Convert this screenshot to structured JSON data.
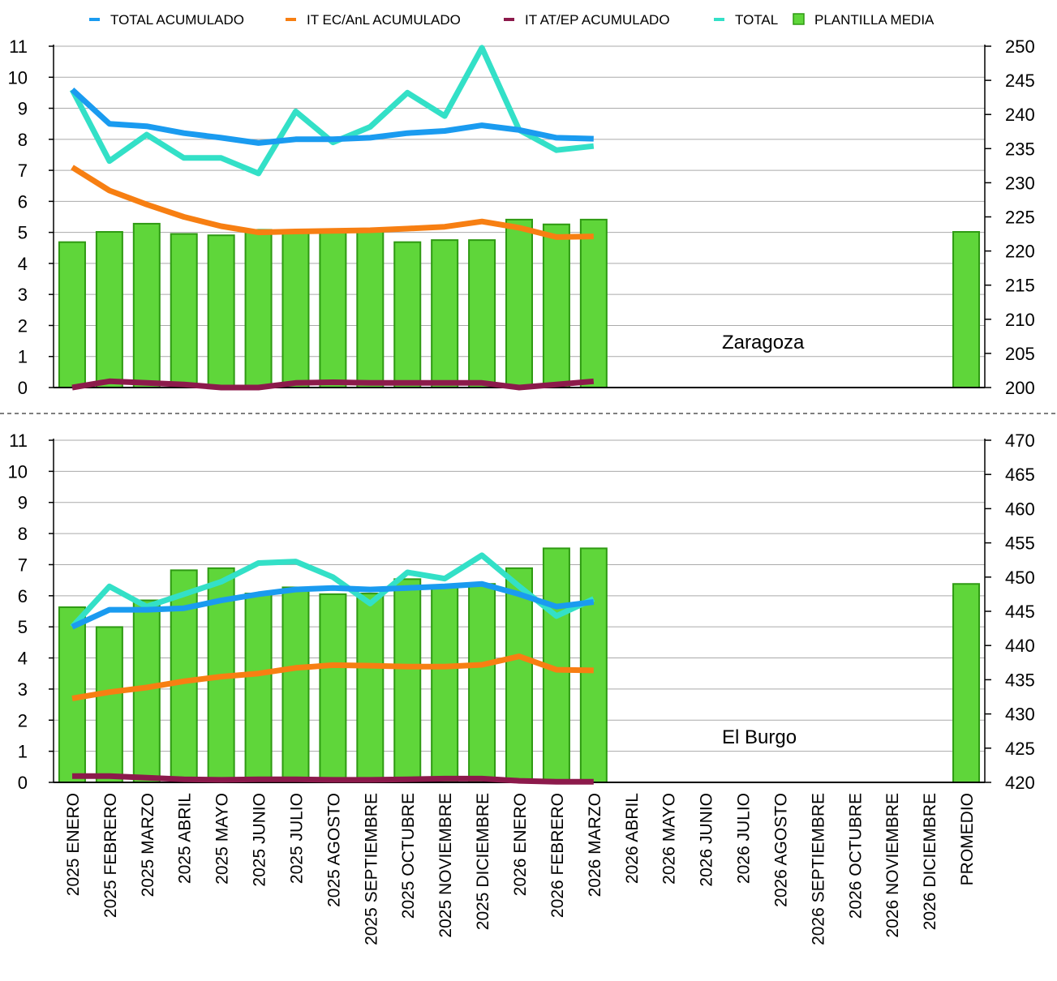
{
  "legend": [
    {
      "label": "TOTAL ACUMULADO",
      "color": "#1a9bf0",
      "kind": "line"
    },
    {
      "label": "IT EC/AnL ACUMULADO",
      "color": "#f77f12",
      "kind": "line"
    },
    {
      "label": "IT AT/EP ACUMULADO",
      "color": "#8c1a4b",
      "kind": "line"
    },
    {
      "label": "TOTAL",
      "color": "#33e0c7",
      "kind": "line"
    },
    {
      "label": "PLANTILLA MEDIA",
      "color": "#5fd63a",
      "kind": "bar"
    }
  ],
  "chart_data": [
    {
      "type": "bar+line",
      "panel_label": "Zaragoza",
      "categories": [
        "2025 ENERO",
        "2025 FEBRERO",
        "2025 MARZO",
        "2025 ABRIL",
        "2025 MAYO",
        "2025 JUNIO",
        "2025 JULIO",
        "2025 AGOSTO",
        "2025 SEPTIEMBRE",
        "2025 OCTUBRE",
        "2025 NOVIEMBRE",
        "2025 DICIEMBRE",
        "2026 ENERO",
        "2026 FEBRERO",
        "2026 MARZO",
        "2026 ABRIL",
        "2026 MAYO",
        "2026 JUNIO",
        "2026 JULIO",
        "2026 AGOSTO",
        "2026 SEPTIEMBRE",
        "2026 OCTUBRE",
        "2026 NOVIEMBRE",
        "2026 DICIEMBRE",
        "PROMEDIO"
      ],
      "y_left": {
        "min": 0,
        "max": 11,
        "ticks": [
          0,
          1,
          2,
          3,
          4,
          5,
          6,
          7,
          8,
          9,
          10,
          11
        ]
      },
      "y_right": {
        "min": 200,
        "max": 250,
        "ticks": [
          200,
          205,
          210,
          215,
          220,
          225,
          230,
          235,
          240,
          245,
          250
        ]
      },
      "grid": true,
      "bars": {
        "name": "PLANTILLA MEDIA",
        "axis": "right",
        "values": [
          221.3,
          222.8,
          224.0,
          222.5,
          222.3,
          223.1,
          222.9,
          223.0,
          223.1,
          221.3,
          221.6,
          221.6,
          224.6,
          223.9,
          224.6,
          null,
          null,
          null,
          null,
          null,
          null,
          null,
          null,
          null,
          222.8
        ]
      },
      "series": [
        {
          "name": "TOTAL ACUMULADO",
          "axis": "left",
          "color": "#1a9bf0",
          "values": [
            9.6,
            8.5,
            8.42,
            8.2,
            8.05,
            7.88,
            8.0,
            8.0,
            8.05,
            8.2,
            8.27,
            8.45,
            8.3,
            8.05,
            8.02,
            null,
            null,
            null,
            null,
            null,
            null,
            null,
            null,
            null,
            null
          ]
        },
        {
          "name": "IT EC/AnL ACUMULADO",
          "axis": "left",
          "color": "#f77f12",
          "values": [
            7.1,
            6.35,
            5.9,
            5.5,
            5.2,
            5.0,
            5.03,
            5.05,
            5.07,
            5.12,
            5.18,
            5.35,
            5.15,
            4.85,
            4.87,
            null,
            null,
            null,
            null,
            null,
            null,
            null,
            null,
            null,
            null
          ]
        },
        {
          "name": "IT AT/EP ACUMULADO",
          "axis": "left",
          "color": "#8c1a4b",
          "values": [
            0.0,
            0.2,
            0.15,
            0.1,
            0.0,
            0.0,
            0.15,
            0.17,
            0.15,
            0.15,
            0.15,
            0.15,
            0.0,
            0.1,
            0.2,
            null,
            null,
            null,
            null,
            null,
            null,
            null,
            null,
            null,
            null
          ]
        },
        {
          "name": "TOTAL",
          "axis": "left",
          "color": "#33e0c7",
          "values": [
            9.6,
            7.3,
            8.15,
            7.4,
            7.4,
            6.9,
            8.9,
            7.9,
            8.4,
            9.5,
            8.75,
            10.95,
            8.3,
            7.65,
            7.78,
            null,
            null,
            null,
            null,
            null,
            null,
            null,
            null,
            null,
            null
          ]
        }
      ]
    },
    {
      "type": "bar+line",
      "panel_label": "El Burgo",
      "categories": [
        "2025 ENERO",
        "2025 FEBRERO",
        "2025 MARZO",
        "2025 ABRIL",
        "2025 MAYO",
        "2025 JUNIO",
        "2025 JULIO",
        "2025 AGOSTO",
        "2025 SEPTIEMBRE",
        "2025 OCTUBRE",
        "2025 NOVIEMBRE",
        "2025 DICIEMBRE",
        "2026 ENERO",
        "2026 FEBRERO",
        "2026 MARZO",
        "2026 ABRIL",
        "2026 MAYO",
        "2026 JUNIO",
        "2026 JULIO",
        "2026 AGOSTO",
        "2026 SEPTIEMBRE",
        "2026 OCTUBRE",
        "2026 NOVIEMBRE",
        "2026 DICIEMBRE",
        "PROMEDIO"
      ],
      "y_left": {
        "min": 0,
        "max": 11,
        "ticks": [
          0,
          1,
          2,
          3,
          4,
          5,
          6,
          7,
          8,
          9,
          10,
          11
        ]
      },
      "y_right": {
        "min": 420,
        "max": 470,
        "ticks": [
          420,
          425,
          430,
          435,
          440,
          445,
          450,
          455,
          460,
          465,
          470
        ]
      },
      "grid": true,
      "bars": {
        "name": "PLANTILLA MEDIA",
        "axis": "right",
        "values": [
          445.6,
          442.7,
          446.6,
          451.0,
          451.3,
          447.6,
          448.5,
          447.5,
          447.6,
          449.7,
          448.8,
          449.0,
          451.3,
          454.2,
          454.2,
          null,
          null,
          null,
          null,
          null,
          null,
          null,
          null,
          null,
          449.0
        ]
      },
      "series": [
        {
          "name": "TOTAL ACUMULADO",
          "axis": "left",
          "color": "#1a9bf0",
          "values": [
            5.0,
            5.55,
            5.55,
            5.6,
            5.85,
            6.05,
            6.2,
            6.25,
            6.2,
            6.25,
            6.3,
            6.38,
            6.05,
            5.65,
            5.8,
            null,
            null,
            null,
            null,
            null,
            null,
            null,
            null,
            null,
            null
          ]
        },
        {
          "name": "IT EC/AnL ACUMULADO",
          "axis": "left",
          "color": "#f77f12",
          "values": [
            2.7,
            2.9,
            3.05,
            3.25,
            3.4,
            3.5,
            3.68,
            3.77,
            3.75,
            3.72,
            3.72,
            3.78,
            4.05,
            3.62,
            3.6,
            null,
            null,
            null,
            null,
            null,
            null,
            null,
            null,
            null,
            null
          ]
        },
        {
          "name": "IT AT/EP ACUMULADO",
          "axis": "left",
          "color": "#8c1a4b",
          "values": [
            0.2,
            0.2,
            0.15,
            0.1,
            0.08,
            0.1,
            0.1,
            0.08,
            0.08,
            0.1,
            0.12,
            0.12,
            0.05,
            0.02,
            0.02,
            null,
            null,
            null,
            null,
            null,
            null,
            null,
            null,
            null,
            null
          ]
        },
        {
          "name": "TOTAL",
          "axis": "left",
          "color": "#33e0c7",
          "values": [
            5.0,
            6.3,
            5.65,
            6.05,
            6.45,
            7.05,
            7.1,
            6.6,
            5.75,
            6.75,
            6.55,
            7.3,
            6.3,
            5.35,
            5.9,
            null,
            null,
            null,
            null,
            null,
            null,
            null,
            null,
            null,
            null
          ]
        }
      ]
    }
  ]
}
